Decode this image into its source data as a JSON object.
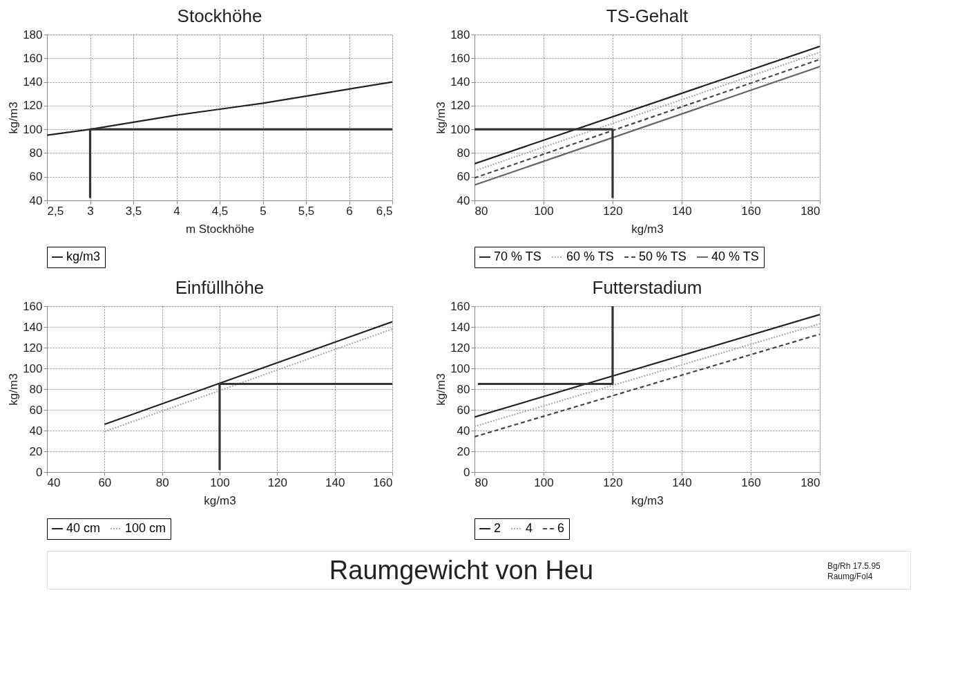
{
  "chart_data": [
    {
      "type": "line",
      "title": "Stockhöhe",
      "xlabel": "m Stockhöhe",
      "ylabel": "kg/m3",
      "xlim": [
        2.5,
        6.5
      ],
      "xticks": [
        {
          "value": 2.5,
          "label": "2,5"
        },
        3,
        {
          "value": 3.5,
          "label": "3,5"
        },
        4,
        {
          "value": 4.5,
          "label": "4,5"
        },
        5,
        {
          "value": 5.5,
          "label": "5,5"
        },
        6,
        {
          "value": 6.5,
          "label": "6,5"
        }
      ],
      "ylim": [
        40,
        180
      ],
      "yticks": [
        40,
        60,
        80,
        100,
        120,
        140,
        160,
        180
      ],
      "grid": true,
      "legend": "bottom",
      "series": [
        {
          "name": "kg/m3",
          "color": "#222222",
          "line_style": "solid",
          "x": [
            2.5,
            3,
            3.5,
            4,
            4.5,
            5,
            5.5,
            6,
            6.5
          ],
          "values": [
            95,
            100,
            106,
            112,
            117,
            122,
            128,
            134,
            140
          ]
        },
        {
          "color": "#333333",
          "line_style": "solid",
          "x": [
            3,
            3,
            6.5
          ],
          "values": [
            42,
            100,
            100
          ]
        }
      ]
    },
    {
      "type": "line",
      "title": "TS-Gehalt",
      "xlabel": "kg/m3",
      "ylabel": "kg/m3",
      "xlim": [
        80,
        180
      ],
      "xticks": [
        80,
        100,
        120,
        140,
        160,
        180
      ],
      "ylim": [
        40,
        180
      ],
      "yticks": [
        40,
        60,
        80,
        100,
        120,
        140,
        160,
        180
      ],
      "grid": true,
      "legend": "bottom",
      "series": [
        {
          "name": "70 % TS",
          "color": "#222222",
          "line_style": "solid",
          "x": [
            80,
            180
          ],
          "values": [
            71,
            170
          ]
        },
        {
          "name": "60 % TS",
          "color": "#aaaaaa",
          "line_style": "dotted",
          "x": [
            80,
            180
          ],
          "values": [
            65,
            165
          ]
        },
        {
          "name": "50 % TS",
          "color": "#444444",
          "line_style": "dashed",
          "x": [
            80,
            180
          ],
          "values": [
            59,
            159
          ]
        },
        {
          "name": "40 % TS",
          "color": "#666666",
          "line_style": "solid",
          "x": [
            80,
            180
          ],
          "values": [
            53,
            153
          ]
        },
        {
          "color": "#333333",
          "line_style": "solid",
          "x": [
            80,
            120,
            120
          ],
          "values": [
            100,
            100,
            42
          ]
        }
      ]
    },
    {
      "type": "line",
      "title": "Einfüllhöhe",
      "xlabel": "kg/m3",
      "ylabel": "kg/m3",
      "xlim": [
        40,
        160
      ],
      "xticks": [
        40,
        60,
        80,
        100,
        120,
        140,
        160
      ],
      "ylim": [
        0,
        160
      ],
      "yticks": [
        0,
        20,
        40,
        60,
        80,
        100,
        120,
        140,
        160
      ],
      "grid": true,
      "legend": "bottom",
      "series": [
        {
          "name": "40 cm",
          "color": "#222222",
          "line_style": "solid",
          "x": [
            60,
            160
          ],
          "values": [
            46,
            145
          ]
        },
        {
          "name": "100 cm",
          "color": "#aaaaaa",
          "line_style": "dotted",
          "x": [
            60,
            160
          ],
          "values": [
            39,
            138
          ]
        },
        {
          "color": "#333333",
          "line_style": "solid",
          "x": [
            160,
            100,
            100
          ],
          "values": [
            85,
            85,
            2
          ]
        }
      ]
    },
    {
      "type": "line",
      "title": "Futterstadium",
      "xlabel": "kg/m3",
      "ylabel": "kg/m3",
      "xlim": [
        80,
        180
      ],
      "xticks": [
        80,
        100,
        120,
        140,
        160,
        180
      ],
      "ylim": [
        0,
        160
      ],
      "yticks": [
        0,
        20,
        40,
        60,
        80,
        100,
        120,
        140,
        160
      ],
      "grid": true,
      "legend": "bottom",
      "series": [
        {
          "name": "2",
          "color": "#222222",
          "line_style": "solid",
          "x": [
            80,
            180
          ],
          "values": [
            53,
            152
          ]
        },
        {
          "name": "4",
          "color": "#aaaaaa",
          "line_style": "dotted",
          "x": [
            80,
            180
          ],
          "values": [
            44,
            143
          ]
        },
        {
          "name": "6",
          "color": "#444444",
          "line_style": "dashed",
          "x": [
            80,
            180
          ],
          "values": [
            34,
            133
          ]
        },
        {
          "color": "#333333",
          "line_style": "solid",
          "x": [
            120,
            120,
            81
          ],
          "values": [
            160,
            85,
            85
          ]
        }
      ]
    },
    {
      "type": "other",
      "title": "Raumgewicht von Heu",
      "annotations": [
        "Bg/Rh 17.5.95",
        "Raumg/Fol4"
      ]
    }
  ]
}
